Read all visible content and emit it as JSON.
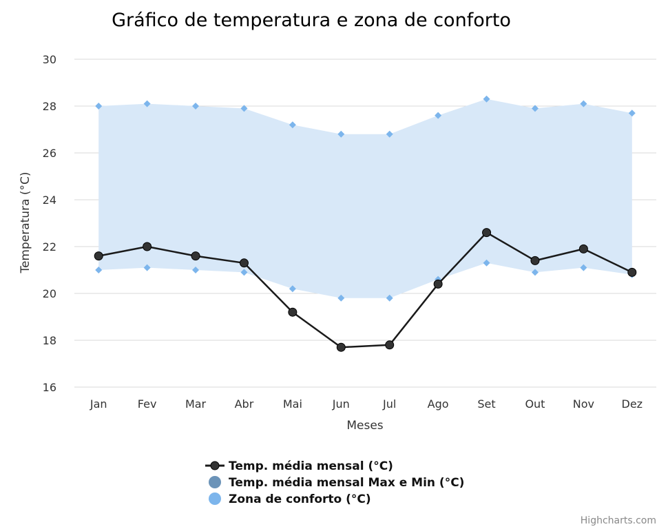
{
  "chart_data": {
    "type": "line",
    "title": "Gráfico de temperatura e zona de conforto",
    "xlabel": "Meses",
    "ylabel": "Temperatura (°C)",
    "ylim": [
      16,
      30
    ],
    "yticks": [
      16,
      18,
      20,
      22,
      24,
      26,
      28,
      30
    ],
    "grid": true,
    "legend_position": "bottom",
    "categories": [
      "Jan",
      "Fev",
      "Mar",
      "Abr",
      "Mai",
      "Jun",
      "Jul",
      "Ago",
      "Set",
      "Out",
      "Nov",
      "Dez"
    ],
    "series": [
      {
        "name": "Temp. média mensal (°C)",
        "type": "line",
        "color": "#000000",
        "values": [
          21.6,
          22.0,
          21.6,
          21.3,
          19.2,
          17.7,
          17.8,
          20.4,
          22.6,
          21.4,
          21.9,
          20.9
        ]
      },
      {
        "name": "Temp. média mensal Max e Min (°C)",
        "type": "scatter",
        "color": "#6b93b8",
        "values": []
      },
      {
        "name": "Zona de conforto (°C)",
        "type": "arearange",
        "color": "#7cb5ec",
        "fill": "#d8e8f8",
        "high": [
          28.0,
          28.1,
          28.0,
          27.9,
          27.2,
          26.8,
          26.8,
          27.6,
          28.3,
          27.9,
          28.1,
          27.7
        ],
        "low": [
          21.0,
          21.1,
          21.0,
          20.9,
          20.2,
          19.8,
          19.8,
          20.6,
          21.3,
          20.9,
          21.1,
          20.8
        ]
      }
    ]
  },
  "credits": "Highcharts.com"
}
